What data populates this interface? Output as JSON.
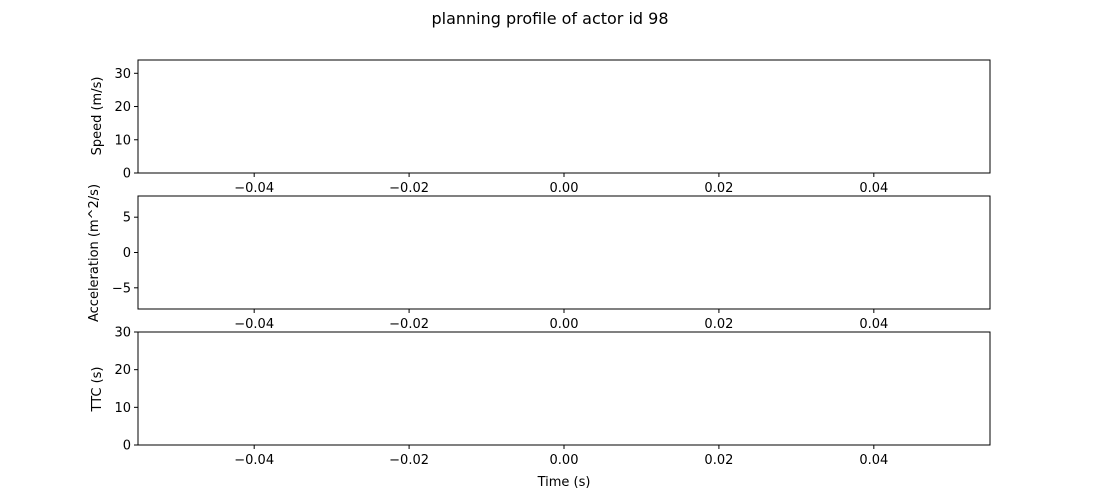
{
  "title": "planning profile of actor id 98",
  "chart_data": [
    {
      "type": "line",
      "ylabel": "Speed (m/s)",
      "xlabel": "",
      "xlim": [
        -0.055,
        0.055
      ],
      "ylim": [
        0,
        34
      ],
      "x_ticks": [
        -0.04,
        -0.02,
        0.0,
        0.02,
        0.04
      ],
      "x_tick_labels": [
        "−0.04",
        "−0.02",
        "0.00",
        "0.02",
        "0.04"
      ],
      "y_ticks": [
        0,
        10,
        20,
        30
      ],
      "y_tick_labels": [
        "0",
        "10",
        "20",
        "30"
      ],
      "series": [],
      "grid": false
    },
    {
      "type": "line",
      "ylabel": "Acceleration (m^2/s)",
      "xlabel": "",
      "xlim": [
        -0.055,
        0.055
      ],
      "ylim": [
        -8,
        8
      ],
      "x_ticks": [
        -0.04,
        -0.02,
        0.0,
        0.02,
        0.04
      ],
      "x_tick_labels": [
        "−0.04",
        "−0.02",
        "0.00",
        "0.02",
        "0.04"
      ],
      "y_ticks": [
        -5,
        0,
        5
      ],
      "y_tick_labels": [
        "−5",
        "0",
        "5"
      ],
      "series": [],
      "grid": false
    },
    {
      "type": "line",
      "ylabel": "TTC (s)",
      "xlabel": "Time (s)",
      "xlim": [
        -0.055,
        0.055
      ],
      "ylim": [
        0,
        30
      ],
      "x_ticks": [
        -0.04,
        -0.02,
        0.0,
        0.02,
        0.04
      ],
      "x_tick_labels": [
        "−0.04",
        "−0.02",
        "0.00",
        "0.02",
        "0.04"
      ],
      "y_ticks": [
        0,
        10,
        20,
        30
      ],
      "y_tick_labels": [
        "0",
        "10",
        "20",
        "30"
      ],
      "series": [],
      "grid": false
    }
  ]
}
